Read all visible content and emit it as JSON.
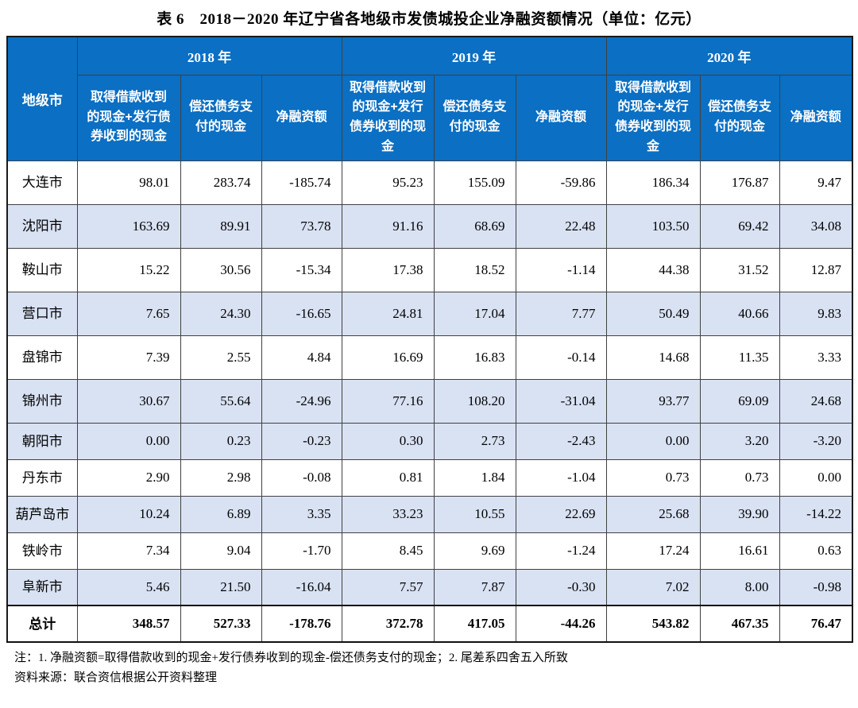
{
  "title": "表 6　2018－2020 年辽宁省各地级市发债城投企业净融资额情况（单位：亿元）",
  "table": {
    "city_header": "地级市",
    "year_groups": [
      {
        "label": "2018 年",
        "columns": [
          "取得借款收到的现金+发行债券收到的现金",
          "偿还债务支付的现金",
          "净融资额"
        ]
      },
      {
        "label": "2019 年",
        "columns": [
          "取得借款收到的现金+发行债券收到的现金",
          "偿还债务支付的现金",
          "净融资额"
        ]
      },
      {
        "label": "2020 年",
        "columns": [
          "取得借款收到的现金+发行债券收到的现金",
          "偿还债务支付的现金",
          "净融资额"
        ]
      }
    ],
    "rows": [
      {
        "city": "大连市",
        "shaded": false,
        "total": false,
        "values": [
          "98.01",
          "283.74",
          "-185.74",
          "95.23",
          "155.09",
          "-59.86",
          "186.34",
          "176.87",
          "9.47"
        ]
      },
      {
        "city": "沈阳市",
        "shaded": true,
        "total": false,
        "values": [
          "163.69",
          "89.91",
          "73.78",
          "91.16",
          "68.69",
          "22.48",
          "103.50",
          "69.42",
          "34.08"
        ]
      },
      {
        "city": "鞍山市",
        "shaded": false,
        "total": false,
        "values": [
          "15.22",
          "30.56",
          "-15.34",
          "17.38",
          "18.52",
          "-1.14",
          "44.38",
          "31.52",
          "12.87"
        ]
      },
      {
        "city": "营口市",
        "shaded": true,
        "total": false,
        "values": [
          "7.65",
          "24.30",
          "-16.65",
          "24.81",
          "17.04",
          "7.77",
          "50.49",
          "40.66",
          "9.83"
        ]
      },
      {
        "city": "盘锦市",
        "shaded": false,
        "total": false,
        "values": [
          "7.39",
          "2.55",
          "4.84",
          "16.69",
          "16.83",
          "-0.14",
          "14.68",
          "11.35",
          "3.33"
        ]
      },
      {
        "city": "锦州市",
        "shaded": true,
        "total": false,
        "values": [
          "30.67",
          "55.64",
          "-24.96",
          "77.16",
          "108.20",
          "-31.04",
          "93.77",
          "69.09",
          "24.68"
        ]
      },
      {
        "city": "朝阳市",
        "shaded": true,
        "total": false,
        "values": [
          "0.00",
          "0.23",
          "-0.23",
          "0.30",
          "2.73",
          "-2.43",
          "0.00",
          "3.20",
          "-3.20"
        ]
      },
      {
        "city": "丹东市",
        "shaded": false,
        "total": false,
        "values": [
          "2.90",
          "2.98",
          "-0.08",
          "0.81",
          "1.84",
          "-1.04",
          "0.73",
          "0.73",
          "0.00"
        ]
      },
      {
        "city": "葫芦岛市",
        "shaded": true,
        "total": false,
        "values": [
          "10.24",
          "6.89",
          "3.35",
          "33.23",
          "10.55",
          "22.69",
          "25.68",
          "39.90",
          "-14.22"
        ]
      },
      {
        "city": "铁岭市",
        "shaded": false,
        "total": false,
        "values": [
          "7.34",
          "9.04",
          "-1.70",
          "8.45",
          "9.69",
          "-1.24",
          "17.24",
          "16.61",
          "0.63"
        ]
      },
      {
        "city": "阜新市",
        "shaded": true,
        "total": false,
        "values": [
          "5.46",
          "21.50",
          "-16.04",
          "7.57",
          "7.87",
          "-0.30",
          "7.02",
          "8.00",
          "-0.98"
        ]
      },
      {
        "city": "总计",
        "shaded": false,
        "total": true,
        "values": [
          "348.57",
          "527.33",
          "-178.76",
          "372.78",
          "417.05",
          "-44.26",
          "543.82",
          "467.35",
          "76.47"
        ]
      }
    ]
  },
  "notes": [
    "注：1. 净融资额=取得借款收到的现金+发行债券收到的现金-偿还债务支付的现金；2. 尾差系四舍五入所致",
    "资料来源：联合资信根据公开资料整理"
  ],
  "colors": {
    "header_bg": "#0B6FC3",
    "header_text": "#FFFFFF",
    "shaded_row_bg": "#D9E2F3",
    "grid_line": "#404040"
  }
}
